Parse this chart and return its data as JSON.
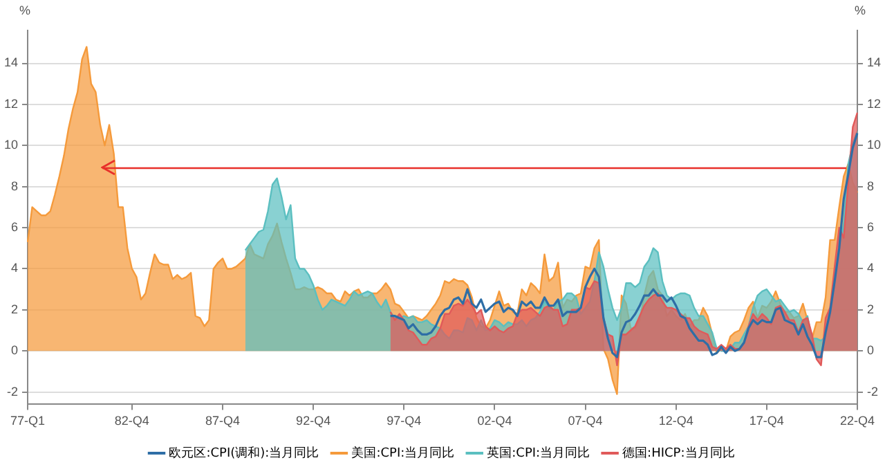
{
  "chart_data": {
    "type": "area",
    "ylabel": "%",
    "y2label": "%",
    "categories": [
      "77-Q1",
      null,
      null,
      null,
      null,
      null,
      null,
      null,
      null,
      null,
      null,
      null,
      null,
      null,
      null,
      null,
      null,
      null,
      null,
      null,
      null,
      null,
      null,
      "82-Q4",
      null,
      null,
      null,
      null,
      null,
      null,
      null,
      null,
      null,
      null,
      null,
      null,
      null,
      null,
      null,
      null,
      null,
      null,
      null,
      "87-Q4",
      null,
      null,
      null,
      null,
      null,
      null,
      null,
      null,
      null,
      null,
      null,
      null,
      null,
      null,
      null,
      null,
      null,
      null,
      null,
      "92-Q4",
      null,
      null,
      null,
      null,
      null,
      null,
      null,
      null,
      null,
      null,
      null,
      null,
      null,
      null,
      null,
      null,
      null,
      null,
      null,
      "97-Q4",
      null,
      null,
      null,
      null,
      null,
      null,
      null,
      null,
      null,
      null,
      null,
      null,
      null,
      null,
      null,
      null,
      null,
      null,
      null,
      "02-Q4",
      null,
      null,
      null,
      null,
      null,
      null,
      null,
      null,
      null,
      null,
      null,
      null,
      null,
      null,
      null,
      null,
      null,
      null,
      null,
      "07-Q4",
      null,
      null,
      null,
      null,
      null,
      null,
      null,
      null,
      null,
      null,
      null,
      null,
      null,
      null,
      null,
      null,
      null,
      null,
      null,
      "12-Q4",
      null,
      null,
      null,
      null,
      null,
      null,
      null,
      null,
      null,
      null,
      null,
      null,
      null,
      null,
      null,
      null,
      null,
      null,
      null,
      "17-Q4",
      null,
      null,
      null,
      null,
      null,
      null,
      null,
      null,
      null,
      null,
      null,
      null,
      null,
      null,
      null,
      null,
      null,
      null,
      null,
      "22-Q4"
    ],
    "ylim": [
      -2.6,
      15.6
    ],
    "yticks": [
      -2,
      0,
      2,
      4,
      6,
      8,
      10,
      12,
      14
    ],
    "y2lim": [
      -2.6,
      15.6
    ],
    "y2ticks": [
      -2,
      0,
      2,
      4,
      6,
      8,
      10,
      12,
      14
    ],
    "grid": "y",
    "legend": "bottom",
    "marker": "none",
    "ref_lines": [
      {
        "axis": "y",
        "value": 8.9,
        "color": "#e8302a"
      }
    ],
    "series": [
      {
        "name": "欧元区:CPI(调和):当月同比",
        "type": "line",
        "color": "#2e6ea6",
        "values": [
          null,
          null,
          null,
          null,
          null,
          null,
          null,
          null,
          null,
          null,
          null,
          null,
          null,
          null,
          null,
          null,
          null,
          null,
          null,
          null,
          null,
          null,
          null,
          null,
          null,
          null,
          null,
          null,
          null,
          null,
          null,
          null,
          null,
          null,
          null,
          null,
          null,
          null,
          null,
          null,
          null,
          null,
          null,
          null,
          null,
          null,
          null,
          null,
          null,
          null,
          null,
          null,
          null,
          null,
          null,
          null,
          null,
          null,
          null,
          null,
          null,
          null,
          null,
          null,
          null,
          null,
          null,
          null,
          null,
          null,
          null,
          null,
          null,
          null,
          null,
          null,
          null,
          null,
          null,
          null,
          1.7,
          1.7,
          1.6,
          1.5,
          1.1,
          1.3,
          1.0,
          0.8,
          0.8,
          0.9,
          1.2,
          1.7,
          2.0,
          2.1,
          2.5,
          2.6,
          2.3,
          3.0,
          2.3,
          2.1,
          2.5,
          1.9,
          2.1,
          2.3,
          2.4,
          1.9,
          2.1,
          2.0,
          1.7,
          2.4,
          2.2,
          2.4,
          2.1,
          2.1,
          2.6,
          2.2,
          2.2,
          2.5,
          1.7,
          1.9,
          1.9,
          1.9,
          2.1,
          3.1,
          3.6,
          4.0,
          3.6,
          1.6,
          0.6,
          -0.1,
          -0.3,
          0.9,
          1.4,
          1.5,
          1.8,
          2.2,
          2.7,
          2.7,
          3.0,
          2.7,
          2.7,
          2.4,
          2.6,
          2.2,
          1.7,
          1.6,
          1.1,
          0.8,
          0.5,
          0.5,
          0.3,
          -0.2,
          -0.1,
          0.2,
          -0.1,
          0.2,
          0.0,
          0.1,
          0.4,
          1.1,
          1.5,
          1.3,
          1.5,
          1.4,
          1.4,
          2.0,
          2.1,
          1.5,
          1.4,
          1.3,
          0.8,
          1.3,
          0.7,
          0.3,
          -0.3,
          -0.3,
          0.9,
          1.9,
          3.4,
          5.0,
          7.4,
          8.6,
          9.9,
          10.6
        ]
      },
      {
        "name": "美国:CPI:当月同比",
        "color": "#f59a3b",
        "values": [
          5.3,
          7.0,
          6.8,
          6.6,
          6.6,
          6.8,
          7.6,
          8.5,
          9.5,
          10.8,
          11.8,
          12.6,
          14.2,
          14.8,
          13.0,
          12.6,
          11.0,
          10.0,
          11.0,
          9.6,
          7.0,
          7.0,
          5.0,
          4.0,
          3.6,
          2.5,
          2.8,
          3.8,
          4.7,
          4.3,
          4.2,
          4.2,
          3.5,
          3.7,
          3.5,
          3.6,
          3.8,
          1.7,
          1.6,
          1.2,
          1.5,
          4.0,
          4.3,
          4.5,
          4.0,
          4.0,
          4.1,
          4.3,
          4.5,
          5.2,
          4.7,
          4.6,
          4.5,
          5.2,
          5.6,
          6.2,
          5.3,
          4.5,
          3.8,
          3.0,
          3.0,
          3.1,
          3.0,
          3.0,
          3.1,
          3.0,
          2.8,
          2.8,
          2.5,
          2.4,
          2.9,
          2.7,
          2.9,
          3.0,
          2.6,
          2.6,
          2.8,
          2.8,
          3.0,
          3.3,
          3.0,
          2.3,
          2.2,
          1.9,
          1.6,
          1.7,
          1.6,
          1.5,
          1.7,
          2.0,
          2.3,
          2.7,
          3.4,
          3.3,
          3.5,
          3.4,
          3.4,
          3.2,
          2.6,
          1.6,
          1.2,
          1.1,
          1.5,
          2.2,
          2.9,
          2.2,
          2.3,
          1.9,
          1.8,
          3.0,
          2.7,
          3.3,
          3.1,
          2.8,
          4.7,
          3.4,
          3.6,
          4.3,
          2.1,
          2.5,
          2.4,
          2.7,
          2.8,
          4.1,
          4.0,
          5.0,
          5.4,
          0.1,
          -0.4,
          -1.4,
          -2.1,
          2.7,
          2.3,
          1.1,
          1.1,
          1.5,
          2.7,
          3.6,
          3.9,
          3.0,
          2.7,
          1.7,
          2.0,
          1.7,
          1.5,
          1.8,
          1.2,
          1.5,
          1.5,
          2.1,
          1.7,
          0.8,
          -0.1,
          0.1,
          0.0,
          0.7,
          0.9,
          1.0,
          1.5,
          2.1,
          2.4,
          1.6,
          2.2,
          2.1,
          2.4,
          2.9,
          2.3,
          1.9,
          1.9,
          1.6,
          1.7,
          2.3,
          1.5,
          0.6,
          1.4,
          1.4,
          2.6,
          5.4,
          5.4,
          7.0,
          8.5,
          9.1,
          8.2,
          7.7
        ]
      },
      {
        "name": "英国:CPI:当月同比",
        "color": "#5bbfc0",
        "values": [
          null,
          null,
          null,
          null,
          null,
          null,
          null,
          null,
          null,
          null,
          null,
          null,
          null,
          null,
          null,
          null,
          null,
          null,
          null,
          null,
          null,
          null,
          null,
          null,
          null,
          null,
          null,
          null,
          null,
          null,
          null,
          null,
          null,
          null,
          null,
          null,
          null,
          null,
          null,
          null,
          null,
          null,
          null,
          null,
          null,
          null,
          null,
          null,
          4.9,
          5.2,
          5.5,
          5.8,
          5.9,
          6.8,
          8.1,
          8.4,
          7.5,
          6.4,
          7.1,
          4.5,
          4.0,
          4.0,
          3.7,
          3.2,
          2.5,
          2.0,
          2.2,
          2.5,
          2.4,
          2.3,
          2.2,
          2.5,
          2.9,
          2.7,
          2.8,
          2.9,
          2.8,
          2.4,
          2.1,
          2.5,
          1.9,
          1.6,
          1.6,
          1.7,
          1.6,
          1.7,
          1.4,
          1.4,
          1.5,
          1.3,
          1.2,
          1.1,
          0.8,
          0.6,
          1.0,
          1.0,
          0.9,
          1.6,
          1.5,
          1.0,
          1.5,
          1.0,
          1.1,
          1.5,
          1.4,
          1.2,
          1.4,
          1.3,
          1.3,
          1.5,
          1.2,
          1.5,
          1.6,
          1.9,
          2.4,
          2.1,
          2.0,
          2.4,
          2.5,
          2.8,
          2.8,
          2.6,
          1.8,
          2.1,
          2.4,
          3.4,
          4.8,
          4.1,
          3.0,
          2.1,
          1.5,
          2.1,
          3.3,
          3.3,
          3.1,
          3.3,
          4.1,
          4.4,
          5.0,
          4.8,
          3.4,
          2.7,
          2.5,
          2.7,
          2.8,
          2.8,
          2.7,
          2.1,
          1.7,
          1.7,
          1.3,
          0.9,
          0.1,
          0.0,
          0.0,
          0.1,
          0.4,
          0.4,
          0.8,
          1.2,
          2.1,
          2.7,
          2.9,
          3.0,
          2.7,
          2.4,
          2.5,
          2.2,
          1.9,
          2.0,
          1.8,
          1.4,
          1.7,
          0.6,
          0.6,
          0.5,
          0.7,
          2.1,
          3.1,
          4.8,
          6.2,
          9.1,
          10.1,
          10.7
        ]
      },
      {
        "name": "德国:HICP:当月同比",
        "color": "#e05a5a",
        "values": [
          null,
          null,
          null,
          null,
          null,
          null,
          null,
          null,
          null,
          null,
          null,
          null,
          null,
          null,
          null,
          null,
          null,
          null,
          null,
          null,
          null,
          null,
          null,
          null,
          null,
          null,
          null,
          null,
          null,
          null,
          null,
          null,
          null,
          null,
          null,
          null,
          null,
          null,
          null,
          null,
          null,
          null,
          null,
          null,
          null,
          null,
          null,
          null,
          null,
          null,
          null,
          null,
          null,
          null,
          null,
          null,
          null,
          null,
          null,
          null,
          null,
          null,
          null,
          null,
          null,
          null,
          null,
          null,
          null,
          null,
          null,
          null,
          null,
          null,
          null,
          null,
          null,
          null,
          null,
          null,
          1.9,
          1.5,
          1.8,
          1.5,
          1.0,
          0.9,
          0.6,
          0.3,
          0.3,
          0.6,
          0.7,
          1.1,
          1.8,
          1.8,
          2.2,
          2.3,
          2.2,
          2.5,
          2.2,
          1.8,
          2.0,
          1.2,
          1.0,
          1.2,
          1.0,
          0.9,
          1.1,
          1.2,
          1.8,
          2.0,
          2.0,
          2.1,
          1.9,
          1.7,
          2.1,
          2.2,
          2.0,
          2.0,
          1.2,
          1.3,
          2.0,
          2.0,
          2.1,
          3.1,
          3.0,
          3.4,
          3.3,
          1.6,
          0.8,
          0.7,
          -0.7,
          0.8,
          0.8,
          1.0,
          1.2,
          1.7,
          2.2,
          2.5,
          2.7,
          2.8,
          2.4,
          2.1,
          2.1,
          2.0,
          1.8,
          1.6,
          1.6,
          1.2,
          1.0,
          0.9,
          0.8,
          0.2,
          0.1,
          0.3,
          0.1,
          0.3,
          0.1,
          0.1,
          0.4,
          1.2,
          1.8,
          1.5,
          1.8,
          1.6,
          1.3,
          2.1,
          2.2,
          1.9,
          1.5,
          1.5,
          0.9,
          1.5,
          1.6,
          0.8,
          -0.4,
          -0.7,
          1.6,
          2.1,
          4.1,
          6.0,
          5.5,
          8.2,
          10.9,
          11.6
        ]
      }
    ]
  }
}
